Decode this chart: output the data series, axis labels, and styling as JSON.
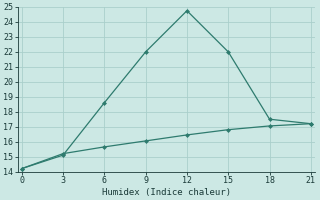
{
  "xlabel": "Humidex (Indice chaleur)",
  "line1_x": [
    0,
    3,
    6,
    9,
    12,
    15,
    18,
    21
  ],
  "line1_y": [
    14.2,
    15.1,
    18.6,
    22.0,
    24.75,
    22.0,
    17.5,
    17.2
  ],
  "line2_x": [
    0,
    3,
    6,
    9,
    12,
    15,
    18,
    21
  ],
  "line2_y": [
    14.2,
    15.2,
    15.65,
    16.05,
    16.45,
    16.8,
    17.05,
    17.2
  ],
  "line_color": "#2e7b6e",
  "bg_color": "#cce8e4",
  "grid_color": "#aacfcb",
  "xlim": [
    -0.3,
    21.3
  ],
  "ylim": [
    14,
    25
  ],
  "xticks": [
    0,
    3,
    6,
    9,
    12,
    15,
    18,
    21
  ],
  "yticks": [
    14,
    15,
    16,
    17,
    18,
    19,
    20,
    21,
    22,
    23,
    24,
    25
  ]
}
